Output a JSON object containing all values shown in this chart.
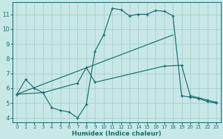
{
  "bg_color": "#c8e8e8",
  "grid_color": "#a8cccc",
  "line_color": "#1a6e6e",
  "xlabel": "Humidex (Indice chaleur)",
  "xlim": [
    -0.5,
    23.5
  ],
  "ylim": [
    3.7,
    11.8
  ],
  "yticks": [
    4,
    5,
    6,
    7,
    8,
    9,
    10,
    11
  ],
  "xticks": [
    0,
    1,
    2,
    3,
    4,
    5,
    6,
    7,
    8,
    9,
    10,
    11,
    12,
    13,
    14,
    15,
    16,
    17,
    18,
    19,
    20,
    21,
    22,
    23
  ],
  "line1_x": [
    0,
    1,
    2,
    3,
    4,
    5,
    6,
    7,
    8,
    9,
    10,
    11,
    12,
    13,
    14,
    15,
    16,
    17,
    18,
    19,
    20,
    21,
    22,
    23
  ],
  "line1_y": [
    5.6,
    6.6,
    6.0,
    5.7,
    4.7,
    4.5,
    4.4,
    4.0,
    4.9,
    8.5,
    9.6,
    11.4,
    11.3,
    10.9,
    11.0,
    11.0,
    11.25,
    11.2,
    10.9,
    5.5,
    5.4,
    5.3,
    5.1,
    5.0
  ],
  "line2_x": [
    0,
    3,
    7,
    8,
    9,
    17,
    19,
    20,
    21,
    22,
    23
  ],
  "line2_y": [
    5.6,
    5.7,
    6.35,
    7.4,
    6.4,
    7.5,
    7.55,
    5.5,
    5.35,
    5.2,
    5.05
  ],
  "line3_x": [
    0,
    18
  ],
  "line3_y": [
    5.6,
    9.6
  ]
}
